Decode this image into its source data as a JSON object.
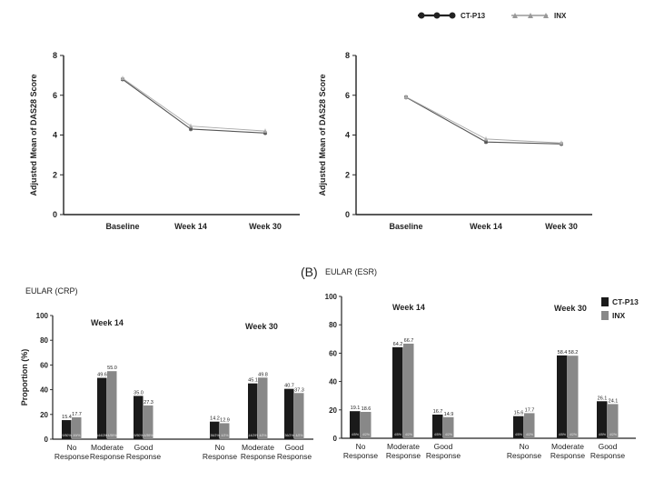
{
  "panel_label": "(B)",
  "chart_data": [
    {
      "type": "line",
      "title": "",
      "categories": [
        "Baseline",
        "Week 14",
        "Week 30"
      ],
      "ylabel": "Adjusted Mean of DAS28 Score",
      "ylim": [
        0,
        8
      ],
      "yticks": [
        0,
        2,
        4,
        6,
        8
      ],
      "series": [
        {
          "name": "CT-P13",
          "values": [
            6.8,
            4.3,
            4.1
          ],
          "color": "#555555"
        },
        {
          "name": "INX",
          "values": [
            6.85,
            4.45,
            4.2
          ],
          "color": "#aaaaaa"
        }
      ]
    },
    {
      "type": "line",
      "title": "",
      "categories": [
        "Baseline",
        "Week 14",
        "Week 30"
      ],
      "ylabel": "Adjusted Mean of DAS28 Score",
      "ylim": [
        0,
        8
      ],
      "yticks": [
        0,
        2,
        4,
        6,
        8
      ],
      "series": [
        {
          "name": "CT-P13",
          "values": [
            5.9,
            3.65,
            3.55
          ],
          "color": "#555555"
        },
        {
          "name": "INX",
          "values": [
            5.92,
            3.8,
            3.6
          ],
          "color": "#aaaaaa"
        }
      ],
      "legend": {
        "position": "top-right",
        "entries": [
          "CT-P13",
          "INX"
        ]
      }
    },
    {
      "type": "bar",
      "title": "EULAR (CRP)",
      "ylabel": "Proportion (%)",
      "ylim": [
        0,
        100
      ],
      "yticks": [
        0,
        20,
        40,
        60,
        80,
        100
      ],
      "groups": [
        {
          "label": "Week 14",
          "categories": [
            "No\nResponse",
            "Moderate\nResponse",
            "Good\nResponse"
          ],
          "series": [
            {
              "name": "CT-P13",
              "values": [
                15.4,
                49.6,
                35.0
              ],
              "labels": [
                "15.4",
                "49.6",
                "35.0"
              ],
              "counts": [
                "9/50%",
                "144/290",
                "9/50%"
              ]
            },
            {
              "name": "INX",
              "values": [
                17.7,
                55.0,
                27.3
              ],
              "labels": [
                "17.7",
                "55.0",
                "27.3"
              ],
              "counts": [
                "49/%",
                "4/59%",
                "4/59%"
              ]
            }
          ]
        },
        {
          "label": "Week 30",
          "categories": [
            "No\nResponse",
            "Moderate\nResponse",
            "Good\nResponse"
          ],
          "series": [
            {
              "name": "CT-P13",
              "values": [
                14.2,
                45.1,
                40.7
              ],
              "labels": [
                "14.2",
                "45.1",
                "40.7"
              ],
              "counts": [
                "36/2%",
                "114/29%",
                "36/2%"
              ]
            },
            {
              "name": "INX",
              "values": [
                12.9,
                49.8,
                37.3
              ],
              "labels": [
                "12.9",
                "49.8",
                "37.3"
              ],
              "counts": [
                "4/2%",
                "4/2%",
                "4/2%"
              ]
            }
          ]
        }
      ]
    },
    {
      "type": "bar",
      "title": "EULAR (ESR)",
      "ylabel": "",
      "ylim": [
        0,
        100
      ],
      "yticks": [
        0,
        20,
        40,
        60,
        80,
        100
      ],
      "groups": [
        {
          "label": "Week 14",
          "categories": [
            "No\nResponse",
            "Moderate\nResponse",
            "Good\nResponse"
          ],
          "series": [
            {
              "name": "CT-P13",
              "values": [
                19.1,
                64.2,
                16.7
              ],
              "labels": [
                "19.1",
                "64.2",
                "16.7"
              ],
              "counts": [
                "4/5%",
                "4/5%",
                "4/5%"
              ]
            },
            {
              "name": "INX",
              "values": [
                18.6,
                66.7,
                14.9
              ],
              "labels": [
                "18.6",
                "66.7",
                "14.9"
              ],
              "counts": [
                "4/2%",
                "4/2%",
                "4/2%"
              ]
            }
          ]
        },
        {
          "label": "Week 30",
          "categories": [
            "No\nResponse",
            "Moderate\nResponse",
            "Good\nResponse"
          ],
          "series": [
            {
              "name": "CT-P13",
              "values": [
                15.6,
                58.4,
                26.1
              ],
              "labels": [
                "15.6",
                "58.4",
                "26.1"
              ],
              "counts": [
                "4/5%",
                "4/5%",
                "4/5%"
              ]
            },
            {
              "name": "INX",
              "values": [
                17.7,
                58.2,
                24.1
              ],
              "labels": [
                "17.7",
                "58.2",
                "24.1"
              ],
              "counts": [
                "4/2%",
                "4/2%",
                "4/2%"
              ]
            }
          ]
        }
      ],
      "legend": {
        "position": "top-right",
        "entries": [
          "CT-P13",
          "INX"
        ]
      }
    }
  ]
}
